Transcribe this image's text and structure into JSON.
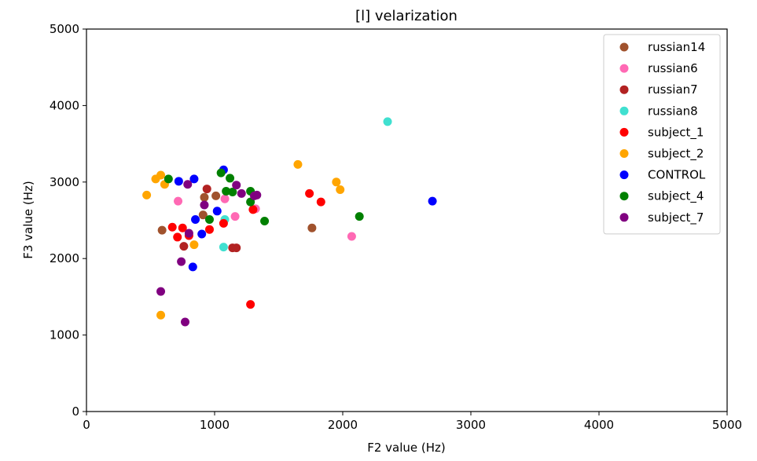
{
  "chart_data": {
    "type": "scatter",
    "title": "[l] velarization",
    "xlabel": "F2 value (Hz)",
    "ylabel": "F3 value (Hz)",
    "xlim": [
      0,
      5000
    ],
    "ylim": [
      0,
      5000
    ],
    "xticks": [
      "0",
      "1000",
      "2000",
      "3000",
      "4000",
      "5000"
    ],
    "yticks": [
      "0",
      "1000",
      "2000",
      "3000",
      "4000",
      "5000"
    ],
    "xtick_values": [
      0,
      1000,
      2000,
      3000,
      4000,
      5000
    ],
    "ytick_values": [
      0,
      1000,
      2000,
      3000,
      4000,
      5000
    ],
    "grid": false,
    "legend_position": "top-right",
    "series": [
      {
        "name": "russian14",
        "color": "#a0522d",
        "points": [
          [
            590,
            2370
          ],
          [
            920,
            2800
          ],
          [
            1010,
            2820
          ],
          [
            910,
            2570
          ],
          [
            1760,
            2400
          ]
        ]
      },
      {
        "name": "russian6",
        "color": "#ff69b4",
        "points": [
          [
            715,
            2750
          ],
          [
            1080,
            2780
          ],
          [
            1320,
            2650
          ],
          [
            1160,
            2550
          ],
          [
            2070,
            2290
          ]
        ]
      },
      {
        "name": "russian7",
        "color": "#b22222",
        "points": [
          [
            760,
            2160
          ],
          [
            940,
            2910
          ],
          [
            1140,
            2140
          ],
          [
            1170,
            2140
          ]
        ]
      },
      {
        "name": "russian8",
        "color": "#40e0d0",
        "points": [
          [
            1070,
            2150
          ],
          [
            1080,
            2510
          ],
          [
            2350,
            3790
          ]
        ]
      },
      {
        "name": "subject_1",
        "color": "#ff0000",
        "points": [
          [
            670,
            2410
          ],
          [
            710,
            2280
          ],
          [
            750,
            2400
          ],
          [
            800,
            2300
          ],
          [
            960,
            2380
          ],
          [
            1070,
            2460
          ],
          [
            1280,
            1400
          ],
          [
            1300,
            2640
          ],
          [
            1740,
            2850
          ],
          [
            1830,
            2740
          ]
        ]
      },
      {
        "name": "subject_2",
        "color": "#ffa500",
        "points": [
          [
            470,
            2830
          ],
          [
            540,
            3040
          ],
          [
            580,
            3090
          ],
          [
            610,
            2970
          ],
          [
            840,
            2180
          ],
          [
            580,
            1260
          ],
          [
            1650,
            3230
          ],
          [
            1950,
            3000
          ],
          [
            1980,
            2900
          ]
        ]
      },
      {
        "name": "CONTROL",
        "color": "#0000ff",
        "points": [
          [
            720,
            3010
          ],
          [
            840,
            3040
          ],
          [
            850,
            2510
          ],
          [
            830,
            1890
          ],
          [
            900,
            2320
          ],
          [
            1020,
            2620
          ],
          [
            1070,
            3160
          ],
          [
            2700,
            2750
          ]
        ]
      },
      {
        "name": "subject_4",
        "color": "#008000",
        "points": [
          [
            640,
            3040
          ],
          [
            960,
            2510
          ],
          [
            1050,
            3120
          ],
          [
            1090,
            2880
          ],
          [
            1120,
            3050
          ],
          [
            1140,
            2870
          ],
          [
            1280,
            2880
          ],
          [
            1280,
            2740
          ],
          [
            1390,
            2490
          ],
          [
            2130,
            2550
          ]
        ]
      },
      {
        "name": "subject_7",
        "color": "#800080",
        "points": [
          [
            580,
            1570
          ],
          [
            740,
            1960
          ],
          [
            770,
            1170
          ],
          [
            790,
            2970
          ],
          [
            800,
            2330
          ],
          [
            920,
            2700
          ],
          [
            1170,
            2960
          ],
          [
            1210,
            2850
          ],
          [
            1310,
            2820
          ],
          [
            1330,
            2830
          ]
        ]
      }
    ]
  }
}
